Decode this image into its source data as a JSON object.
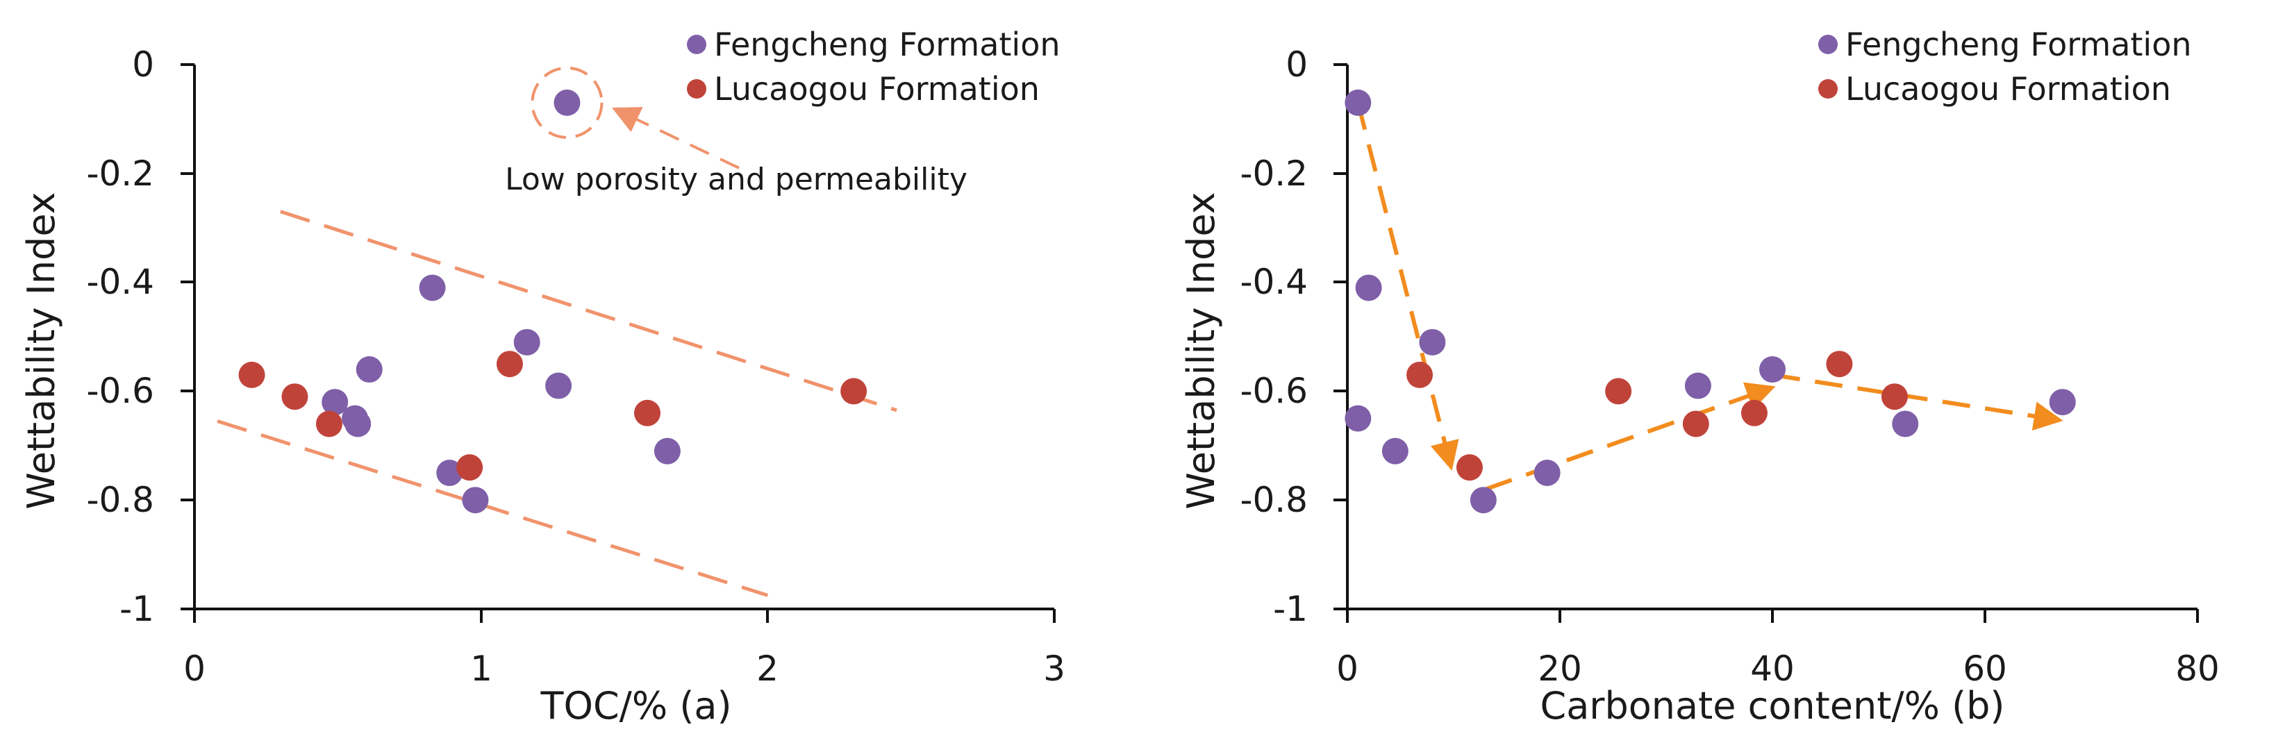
{
  "colors": {
    "fengcheng": "#7f5fa8",
    "lucaogou": "#c0433a",
    "trend_a": "#f0936c",
    "trend_b": "#f28c1e",
    "axis": "#111111"
  },
  "legend": {
    "fengcheng": "Fengcheng Formation",
    "lucaogou": "Lucaogou Formation"
  },
  "chart_data": [
    {
      "id": "a",
      "type": "scatter",
      "xlabel": "TOC/% (a)",
      "ylabel": "Wettability Index",
      "xlim": [
        0,
        3
      ],
      "ylim": [
        -1,
        0
      ],
      "xticks": [
        "0",
        "1",
        "2",
        "3"
      ],
      "yticks": [
        "0",
        "-0.2",
        "-0.4",
        "-0.6",
        "-0.8",
        "-1"
      ],
      "series": [
        {
          "name": "Fengcheng Formation",
          "points": [
            [
              1.3,
              -0.07
            ],
            [
              0.83,
              -0.41
            ],
            [
              1.16,
              -0.51
            ],
            [
              0.61,
              -0.56
            ],
            [
              1.27,
              -0.59
            ],
            [
              0.49,
              -0.62
            ],
            [
              0.56,
              -0.65
            ],
            [
              0.57,
              -0.66
            ],
            [
              1.65,
              -0.71
            ],
            [
              0.89,
              -0.75
            ],
            [
              0.98,
              -0.8
            ]
          ]
        },
        {
          "name": "Lucaogou Formation",
          "points": [
            [
              0.2,
              -0.57
            ],
            [
              0.35,
              -0.61
            ],
            [
              0.47,
              -0.66
            ],
            [
              0.96,
              -0.74
            ],
            [
              1.1,
              -0.55
            ],
            [
              1.58,
              -0.64
            ],
            [
              2.3,
              -0.6
            ]
          ]
        }
      ],
      "trend_lines": [
        {
          "from": [
            0.3,
            -0.27
          ],
          "to": [
            2.45,
            -0.635
          ]
        },
        {
          "from": [
            0.08,
            -0.655
          ],
          "to": [
            2.0,
            -0.975
          ]
        }
      ],
      "highlight_point": [
        1.3,
        -0.07
      ],
      "annotation": {
        "text": "Low porosity and permeability",
        "arrow_from": [
          1.9,
          -0.19
        ],
        "arrow_to": [
          1.5,
          -0.09
        ]
      }
    },
    {
      "id": "b",
      "type": "scatter",
      "xlabel": "Carbonate content/% (b)",
      "ylabel": "Wettability Index",
      "xlim": [
        0,
        80
      ],
      "ylim": [
        -1,
        0
      ],
      "xticks": [
        "0",
        "20",
        "40",
        "60",
        "80"
      ],
      "yticks": [
        "0",
        "-0.2",
        "-0.4",
        "-0.6",
        "-0.8",
        "-1"
      ],
      "series": [
        {
          "name": "Fengcheng Formation",
          "points": [
            [
              1.0,
              -0.07
            ],
            [
              2.0,
              -0.41
            ],
            [
              8.0,
              -0.51
            ],
            [
              1.0,
              -0.65
            ],
            [
              4.5,
              -0.71
            ],
            [
              12.8,
              -0.8
            ],
            [
              18.8,
              -0.75
            ],
            [
              33.0,
              -0.59
            ],
            [
              40.0,
              -0.56
            ],
            [
              52.5,
              -0.66
            ],
            [
              67.3,
              -0.62
            ]
          ]
        },
        {
          "name": "Lucaogou Formation",
          "points": [
            [
              6.8,
              -0.57
            ],
            [
              11.5,
              -0.74
            ],
            [
              25.5,
              -0.6
            ],
            [
              32.8,
              -0.66
            ],
            [
              38.3,
              -0.64
            ],
            [
              46.3,
              -0.55
            ],
            [
              51.5,
              -0.61
            ]
          ]
        }
      ],
      "trend_path": [
        {
          "from": [
            1.0,
            -0.07
          ],
          "to": [
            9.5,
            -0.72
          ],
          "arrow": true
        },
        {
          "from": [
            13.0,
            -0.78
          ],
          "to": [
            39.0,
            -0.6
          ],
          "arrow": true
        },
        {
          "from": [
            40.0,
            -0.57
          ],
          "to": [
            66.0,
            -0.65
          ],
          "arrow": true
        }
      ]
    }
  ]
}
